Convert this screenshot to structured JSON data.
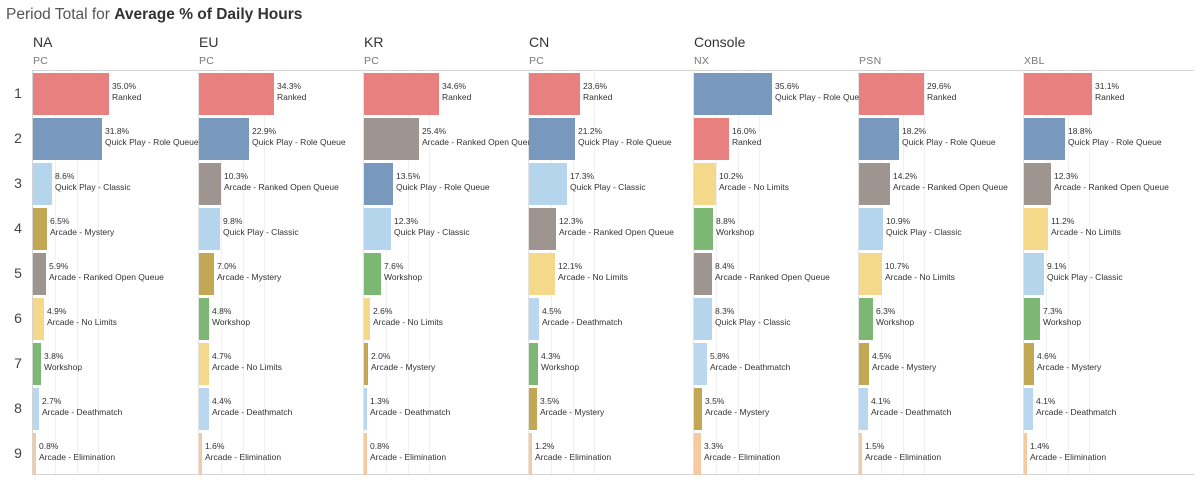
{
  "title": {
    "prefix": "Period Total for ",
    "bold": "Average % of Daily Hours"
  },
  "colors": {
    "Ranked": "#e8807f",
    "Quick Play - Role Queue": "#7899bd",
    "Arcade - Ranked Open Queue": "#9e9490",
    "Quick Play - Classic": "#b5d5ec",
    "Arcade - Mystery": "#c2a754",
    "Arcade - No Limits": "#f4d98a",
    "Workshop": "#7cb774",
    "Arcade - Deathmatch": "#b9d7ee",
    "Arcade - Elimination": "#f7c9a0"
  },
  "region_headers": [
    "NA",
    "EU",
    "KR",
    "CN",
    "Console"
  ],
  "rank_labels": [
    "1",
    "2",
    "3",
    "4",
    "5",
    "6",
    "7",
    "8",
    "9"
  ],
  "chart_data": {
    "type": "bar",
    "title": "Period Total for Average % of Daily Hours",
    "value_format": "percent",
    "xlim": [
      0,
      40
    ],
    "panels": [
      {
        "region": "NA",
        "platform": "PC",
        "bars": [
          {
            "label": "Ranked",
            "value": 35.0,
            "display": "35.0%"
          },
          {
            "label": "Quick Play - Role Queue",
            "value": 31.8,
            "display": "31.8%"
          },
          {
            "label": "Quick Play - Classic",
            "value": 8.6,
            "display": "8.6%"
          },
          {
            "label": "Arcade - Mystery",
            "value": 6.5,
            "display": "6.5%"
          },
          {
            "label": "Arcade - Ranked Open Queue",
            "value": 5.9,
            "display": "5.9%"
          },
          {
            "label": "Arcade - No Limits",
            "value": 4.9,
            "display": "4.9%"
          },
          {
            "label": "Workshop",
            "value": 3.8,
            "display": "3.8%"
          },
          {
            "label": "Arcade - Deathmatch",
            "value": 2.7,
            "display": "2.7%"
          },
          {
            "label": "Arcade - Elimination",
            "value": 0.8,
            "display": "0.8%"
          }
        ]
      },
      {
        "region": "EU",
        "platform": "PC",
        "bars": [
          {
            "label": "Ranked",
            "value": 34.3,
            "display": "34.3%"
          },
          {
            "label": "Quick Play - Role Queue",
            "value": 22.9,
            "display": "22.9%"
          },
          {
            "label": "Arcade - Ranked Open Queue",
            "value": 10.3,
            "display": "10.3%"
          },
          {
            "label": "Quick Play - Classic",
            "value": 9.8,
            "display": "9.8%"
          },
          {
            "label": "Arcade - Mystery",
            "value": 7.0,
            "display": "7.0%"
          },
          {
            "label": "Workshop",
            "value": 4.8,
            "display": "4.8%"
          },
          {
            "label": "Arcade - No Limits",
            "value": 4.7,
            "display": "4.7%"
          },
          {
            "label": "Arcade - Deathmatch",
            "value": 4.4,
            "display": "4.4%"
          },
          {
            "label": "Arcade - Elimination",
            "value": 1.6,
            "display": "1.6%"
          }
        ]
      },
      {
        "region": "KR",
        "platform": "PC",
        "bars": [
          {
            "label": "Ranked",
            "value": 34.6,
            "display": "34.6%"
          },
          {
            "label": "Arcade - Ranked Open Queue",
            "value": 25.4,
            "display": "25.4%"
          },
          {
            "label": "Quick Play - Role Queue",
            "value": 13.5,
            "display": "13.5%"
          },
          {
            "label": "Quick Play - Classic",
            "value": 12.3,
            "display": "12.3%"
          },
          {
            "label": "Workshop",
            "value": 7.6,
            "display": "7.6%"
          },
          {
            "label": "Arcade - No Limits",
            "value": 2.6,
            "display": "2.6%"
          },
          {
            "label": "Arcade - Mystery",
            "value": 2.0,
            "display": "2.0%"
          },
          {
            "label": "Arcade - Deathmatch",
            "value": 1.3,
            "display": "1.3%"
          },
          {
            "label": "Arcade - Elimination",
            "value": 0.8,
            "display": "0.8%"
          }
        ]
      },
      {
        "region": "CN",
        "platform": "PC",
        "bars": [
          {
            "label": "Ranked",
            "value": 23.6,
            "display": "23.6%"
          },
          {
            "label": "Quick Play - Role Queue",
            "value": 21.2,
            "display": "21.2%"
          },
          {
            "label": "Quick Play - Classic",
            "value": 17.3,
            "display": "17.3%"
          },
          {
            "label": "Arcade - Ranked Open Queue",
            "value": 12.3,
            "display": "12.3%"
          },
          {
            "label": "Arcade - No Limits",
            "value": 12.1,
            "display": "12.1%"
          },
          {
            "label": "Arcade - Deathmatch",
            "value": 4.5,
            "display": "4.5%"
          },
          {
            "label": "Workshop",
            "value": 4.3,
            "display": "4.3%"
          },
          {
            "label": "Arcade - Mystery",
            "value": 3.5,
            "display": "3.5%"
          },
          {
            "label": "Arcade - Elimination",
            "value": 1.2,
            "display": "1.2%"
          }
        ]
      },
      {
        "region": "Console",
        "platform": "NX",
        "bars": [
          {
            "label": "Quick Play - Role Queue",
            "value": 35.6,
            "display": "35.6%"
          },
          {
            "label": "Ranked",
            "value": 16.0,
            "display": "16.0%"
          },
          {
            "label": "Arcade - No Limits",
            "value": 10.2,
            "display": "10.2%"
          },
          {
            "label": "Workshop",
            "value": 8.8,
            "display": "8.8%"
          },
          {
            "label": "Arcade - Ranked Open Queue",
            "value": 8.4,
            "display": "8.4%"
          },
          {
            "label": "Quick Play - Classic",
            "value": 8.3,
            "display": "8.3%"
          },
          {
            "label": "Arcade - Deathmatch",
            "value": 5.8,
            "display": "5.8%"
          },
          {
            "label": "Arcade - Mystery",
            "value": 3.5,
            "display": "3.5%"
          },
          {
            "label": "Arcade - Elimination",
            "value": 3.3,
            "display": "3.3%"
          }
        ]
      },
      {
        "region": "",
        "platform": "PSN",
        "bars": [
          {
            "label": "Ranked",
            "value": 29.6,
            "display": "29.6%"
          },
          {
            "label": "Quick Play - Role Queue",
            "value": 18.2,
            "display": "18.2%"
          },
          {
            "label": "Arcade - Ranked Open Queue",
            "value": 14.2,
            "display": "14.2%"
          },
          {
            "label": "Quick Play - Classic",
            "value": 10.9,
            "display": "10.9%"
          },
          {
            "label": "Arcade - No Limits",
            "value": 10.7,
            "display": "10.7%"
          },
          {
            "label": "Workshop",
            "value": 6.3,
            "display": "6.3%"
          },
          {
            "label": "Arcade - Mystery",
            "value": 4.5,
            "display": "4.5%"
          },
          {
            "label": "Arcade - Deathmatch",
            "value": 4.1,
            "display": "4.1%"
          },
          {
            "label": "Arcade - Elimination",
            "value": 1.5,
            "display": "1.5%"
          }
        ]
      },
      {
        "region": "",
        "platform": "XBL",
        "bars": [
          {
            "label": "Ranked",
            "value": 31.1,
            "display": "31.1%"
          },
          {
            "label": "Quick Play - Role Queue",
            "value": 18.8,
            "display": "18.8%"
          },
          {
            "label": "Arcade - Ranked Open Queue",
            "value": 12.3,
            "display": "12.3%"
          },
          {
            "label": "Arcade - No Limits",
            "value": 11.2,
            "display": "11.2%"
          },
          {
            "label": "Quick Play - Classic",
            "value": 9.1,
            "display": "9.1%"
          },
          {
            "label": "Workshop",
            "value": 7.3,
            "display": "7.3%"
          },
          {
            "label": "Arcade - Mystery",
            "value": 4.6,
            "display": "4.6%"
          },
          {
            "label": "Arcade - Deathmatch",
            "value": 4.1,
            "display": "4.1%"
          },
          {
            "label": "Arcade - Elimination",
            "value": 1.4,
            "display": "1.4%"
          }
        ]
      }
    ]
  }
}
